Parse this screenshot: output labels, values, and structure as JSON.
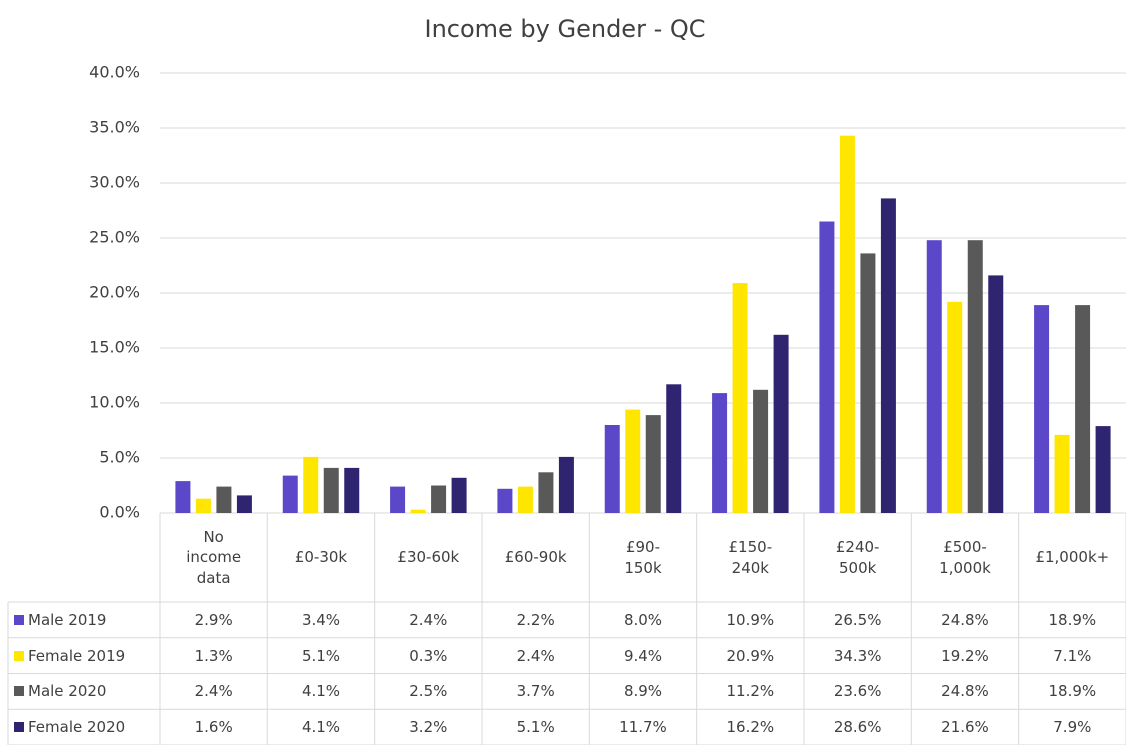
{
  "chart_data": {
    "type": "bar",
    "title": "Income by Gender - QC",
    "categories": [
      "No income data",
      "£0-30k",
      "£30-60k",
      "£60-90k",
      "£90-150k",
      "£150-240k",
      "£240-500k",
      "£500-1,000k",
      "£1,000k+"
    ],
    "series": [
      {
        "name": "Male 2019",
        "color": "#5b48c8",
        "values": [
          2.9,
          3.4,
          2.4,
          2.2,
          8.0,
          10.9,
          26.5,
          24.8,
          18.9
        ],
        "value_labels": [
          "2.9%",
          "3.4%",
          "2.4%",
          "2.2%",
          "8.0%",
          "10.9%",
          "26.5%",
          "24.8%",
          "18.9%"
        ]
      },
      {
        "name": "Female 2019",
        "color": "#ffe600",
        "values": [
          1.3,
          5.1,
          0.3,
          2.4,
          9.4,
          20.9,
          34.3,
          19.2,
          7.1
        ],
        "value_labels": [
          "1.3%",
          "5.1%",
          "0.3%",
          "2.4%",
          "9.4%",
          "20.9%",
          "34.3%",
          "19.2%",
          "7.1%"
        ]
      },
      {
        "name": "Male 2020",
        "color": "#595959",
        "values": [
          2.4,
          4.1,
          2.5,
          3.7,
          8.9,
          11.2,
          23.6,
          24.8,
          18.9
        ],
        "value_labels": [
          "2.4%",
          "4.1%",
          "2.5%",
          "3.7%",
          "8.9%",
          "11.2%",
          "23.6%",
          "24.8%",
          "18.9%"
        ]
      },
      {
        "name": "Female 2020",
        "color": "#2e2470",
        "values": [
          1.6,
          4.1,
          3.2,
          5.1,
          11.7,
          16.2,
          28.6,
          21.6,
          7.9
        ],
        "value_labels": [
          "1.6%",
          "4.1%",
          "3.2%",
          "5.1%",
          "11.7%",
          "16.2%",
          "28.6%",
          "21.6%",
          "7.9%"
        ]
      }
    ],
    "ylim": [
      0,
      40
    ],
    "yticks": [
      {
        "value": 0,
        "label": "0.0%"
      },
      {
        "value": 5,
        "label": "5.0%"
      },
      {
        "value": 10,
        "label": "10.0%"
      },
      {
        "value": 15,
        "label": "15.0%"
      },
      {
        "value": 20,
        "label": "20.0%"
      },
      {
        "value": 25,
        "label": "25.0%"
      },
      {
        "value": 30,
        "label": "30.0%"
      },
      {
        "value": 35,
        "label": "35.0%"
      },
      {
        "value": 40,
        "label": "40.0%"
      }
    ],
    "grid": true
  }
}
